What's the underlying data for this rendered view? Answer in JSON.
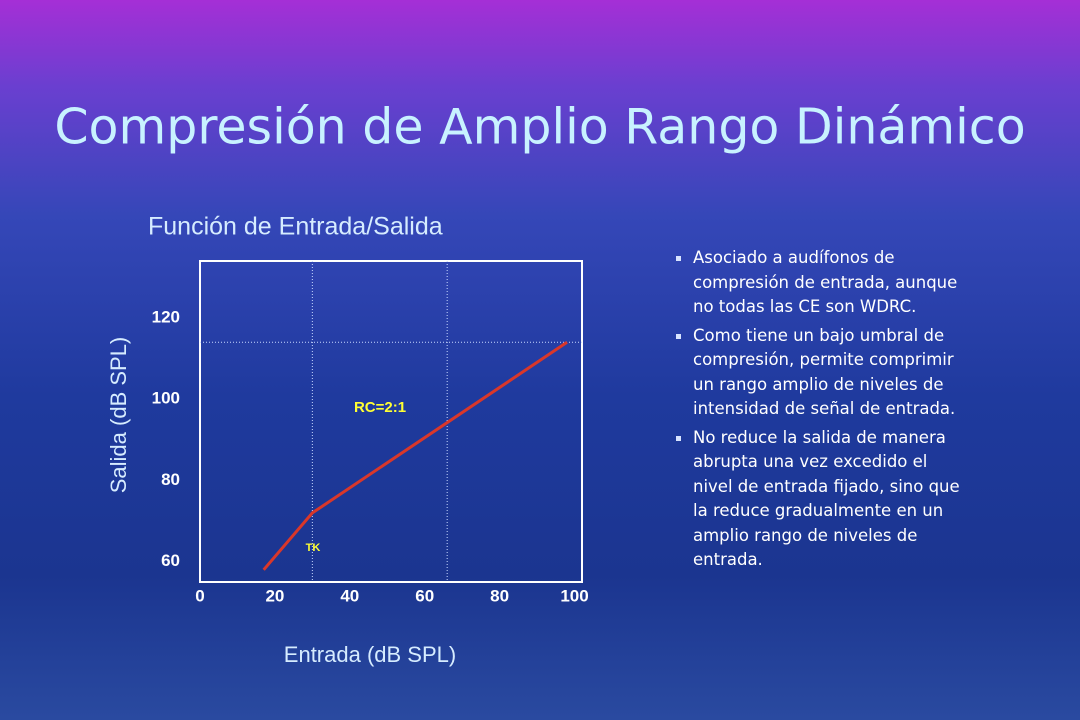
{
  "title": "Compresión de Amplio Rango Dinámico",
  "bullets": [
    "Asociado a audífonos de compresión de entrada, aunque no todas las CE son WDRC.",
    "Como tiene un bajo umbral de compresión, permite comprimir un rango amplio de niveles de intensidad de señal de entrada.",
    "No reduce la salida de manera abrupta una vez excedido el nivel de entrada fijado, sino que la reduce gradualmente en un amplio rango de niveles de entrada."
  ],
  "chart_data": {
    "type": "line",
    "title": "Función de Entrada/Salida",
    "x_label": "Entrada (dB SPL)",
    "y_label": "Salida (dB SPL)",
    "x": [
      17,
      30,
      98
    ],
    "values": [
      58,
      72,
      114
    ],
    "color": "#d9372a",
    "xlim": [
      0,
      102
    ],
    "ylim": [
      55,
      134
    ],
    "xticks": [
      0,
      20,
      40,
      60,
      80,
      100
    ],
    "yticks": [
      60,
      80,
      100,
      120
    ],
    "ref_x": [
      30,
      66
    ],
    "ref_y": [
      114
    ],
    "annotations": [
      "RC=2:1",
      "TK"
    ]
  }
}
